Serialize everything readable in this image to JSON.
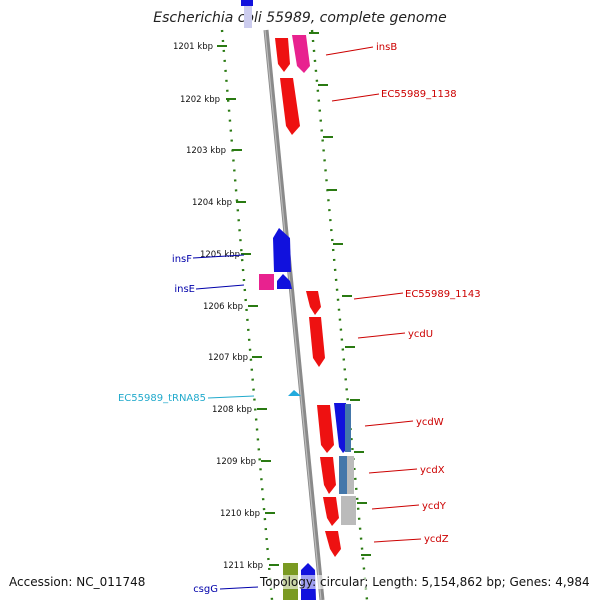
{
  "title": "Escherichia coli 55989, complete genome",
  "footer": {
    "accession": "Accession: NC_011748",
    "stats": "Topology: circular; Length: 5,154,862 bp; Genes: 4,984"
  },
  "colors": {
    "backbone": "#8a8a8a",
    "gridline": "#2a7a12",
    "cds_red": "#ee1111",
    "cds_blue": "#1111dd",
    "pink": "#e8228f",
    "trna": "#22aadd",
    "olive": "#7a9a22",
    "steelblue": "#4477aa",
    "grey": "#bbbbbb",
    "label_red": "#cc0000",
    "label_blue": "#0000aa",
    "label_cyan": "#22aacc"
  },
  "ticks": [
    "1201 kbp",
    "1202 kbp",
    "1203 kbp",
    "1204 kbp",
    "1205 kbp",
    "1206 kbp",
    "1207 kbp",
    "1208 kbp",
    "1209 kbp",
    "1210 kbp",
    "1211 kbp"
  ],
  "genes_right": [
    {
      "name": "insB",
      "color": "label_red"
    },
    {
      "name": "EC55989_1138",
      "color": "label_red"
    },
    {
      "name": "EC55989_1143",
      "color": "label_red"
    },
    {
      "name": "ycdU",
      "color": "label_red"
    },
    {
      "name": "ycdW",
      "color": "label_red"
    },
    {
      "name": "ycdX",
      "color": "label_red"
    },
    {
      "name": "ycdY",
      "color": "label_red"
    },
    {
      "name": "ycdZ",
      "color": "label_red"
    }
  ],
  "genes_left": [
    {
      "name": "insF",
      "color": "label_blue"
    },
    {
      "name": "insE",
      "color": "label_blue"
    },
    {
      "name": "EC55989_tRNA85",
      "color": "label_cyan"
    },
    {
      "name": "csgG",
      "color": "label_blue"
    }
  ]
}
